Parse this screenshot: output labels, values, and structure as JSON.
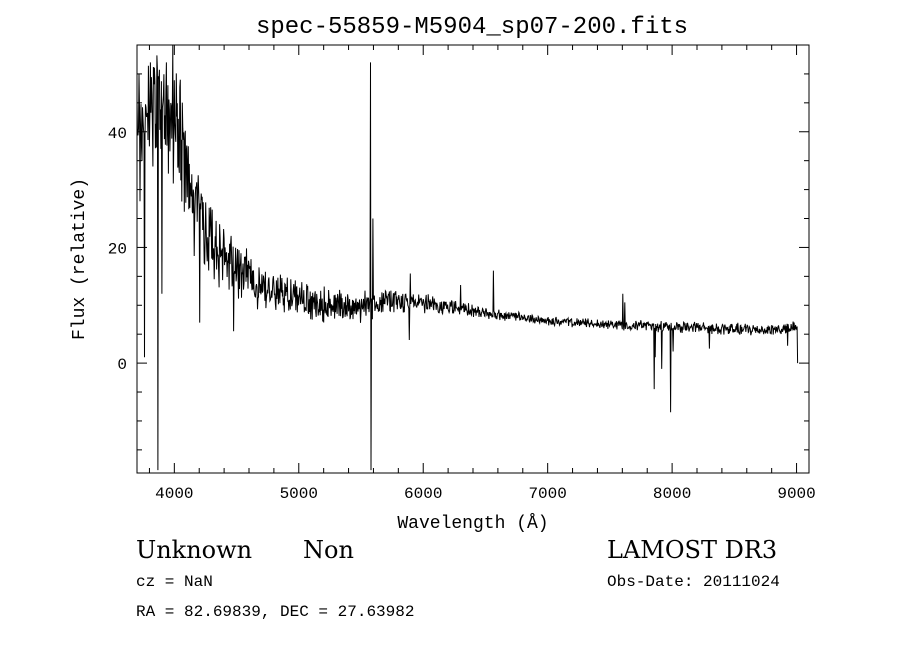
{
  "chart_data": {
    "type": "line",
    "title": "spec-55859-M5904_sp07-200.fits",
    "xlabel": "Wavelength (Å)",
    "ylabel": "Flux (relative)",
    "xlim": [
      3700,
      9100
    ],
    "ylim": [
      -19,
      55
    ],
    "xticks": [
      4000,
      5000,
      6000,
      7000,
      8000,
      9000
    ],
    "yticks": [
      0,
      20,
      40
    ],
    "grid": false,
    "legend": "none",
    "line_color": "#000000",
    "continuum": [
      [
        3700,
        40
      ],
      [
        3750,
        43
      ],
      [
        3800,
        46
      ],
      [
        3850,
        47
      ],
      [
        3900,
        45
      ],
      [
        3950,
        43
      ],
      [
        4000,
        40
      ],
      [
        4050,
        36
      ],
      [
        4100,
        32
      ],
      [
        4150,
        29
      ],
      [
        4200,
        26
      ],
      [
        4250,
        23
      ],
      [
        4300,
        21
      ],
      [
        4350,
        19.5
      ],
      [
        4400,
        18
      ],
      [
        4500,
        16
      ],
      [
        4600,
        14.5
      ],
      [
        4700,
        13.5
      ],
      [
        4800,
        12.8
      ],
      [
        4900,
        12
      ],
      [
        5000,
        11.3
      ],
      [
        5100,
        10.6
      ],
      [
        5200,
        10.2
      ],
      [
        5300,
        9.8
      ],
      [
        5400,
        9.6
      ],
      [
        5500,
        9.5
      ],
      [
        5550,
        9.4
      ],
      [
        5650,
        10.5
      ],
      [
        5700,
        11
      ],
      [
        5800,
        11
      ],
      [
        5900,
        10.6
      ],
      [
        6000,
        10.3
      ],
      [
        6100,
        10
      ],
      [
        6200,
        9.7
      ],
      [
        6300,
        9.4
      ],
      [
        6400,
        9
      ],
      [
        6500,
        8.6
      ],
      [
        6600,
        8.3
      ],
      [
        6800,
        7.8
      ],
      [
        7000,
        7.3
      ],
      [
        7200,
        7
      ],
      [
        7400,
        6.8
      ],
      [
        7600,
        6.6
      ],
      [
        7800,
        6.5
      ],
      [
        8000,
        6.3
      ],
      [
        8200,
        6.1
      ],
      [
        8400,
        5.9
      ],
      [
        8600,
        5.8
      ],
      [
        8800,
        5.8
      ],
      [
        9000,
        6
      ]
    ],
    "noise": [
      [
        3700,
        5
      ],
      [
        4000,
        9
      ],
      [
        4300,
        5
      ],
      [
        4600,
        3.5
      ],
      [
        5000,
        2.6
      ],
      [
        5500,
        2.2
      ],
      [
        5700,
        2
      ],
      [
        6000,
        1.2
      ],
      [
        6500,
        0.8
      ],
      [
        7000,
        0.6
      ],
      [
        7500,
        0.6
      ],
      [
        8000,
        0.8
      ],
      [
        8500,
        0.8
      ],
      [
        9000,
        0.9
      ]
    ],
    "spikes": [
      [
        3715,
        50
      ],
      [
        3725,
        28
      ],
      [
        3760,
        1
      ],
      [
        3810,
        52
      ],
      [
        3830,
        34
      ],
      [
        3870,
        -18.5
      ],
      [
        3900,
        12
      ],
      [
        3935,
        52
      ],
      [
        3990,
        55
      ],
      [
        4050,
        49
      ],
      [
        4205,
        7
      ],
      [
        4475,
        5.5
      ],
      [
        4630,
        16
      ],
      [
        5575,
        52
      ],
      [
        5580,
        -18.5
      ],
      [
        5595,
        25
      ],
      [
        5890,
        4
      ],
      [
        5895,
        15.5
      ],
      [
        6300,
        13.5
      ],
      [
        6565,
        16
      ],
      [
        7605,
        12
      ],
      [
        7620,
        10.5
      ],
      [
        7855,
        -4.5
      ],
      [
        7865,
        1
      ],
      [
        7915,
        -1
      ],
      [
        7990,
        -8.5
      ],
      [
        8010,
        2
      ],
      [
        8300,
        2.5
      ],
      [
        8930,
        3
      ],
      [
        9000,
        6
      ],
      [
        9010,
        0
      ]
    ]
  },
  "info": {
    "object_class": "Unknown",
    "object_subclass": "Non",
    "survey": "LAMOST DR3",
    "cz": "cz = NaN",
    "obs_date": "Obs-Date: 20111024",
    "radec": "RA =  82.69839, DEC =  27.63982"
  }
}
